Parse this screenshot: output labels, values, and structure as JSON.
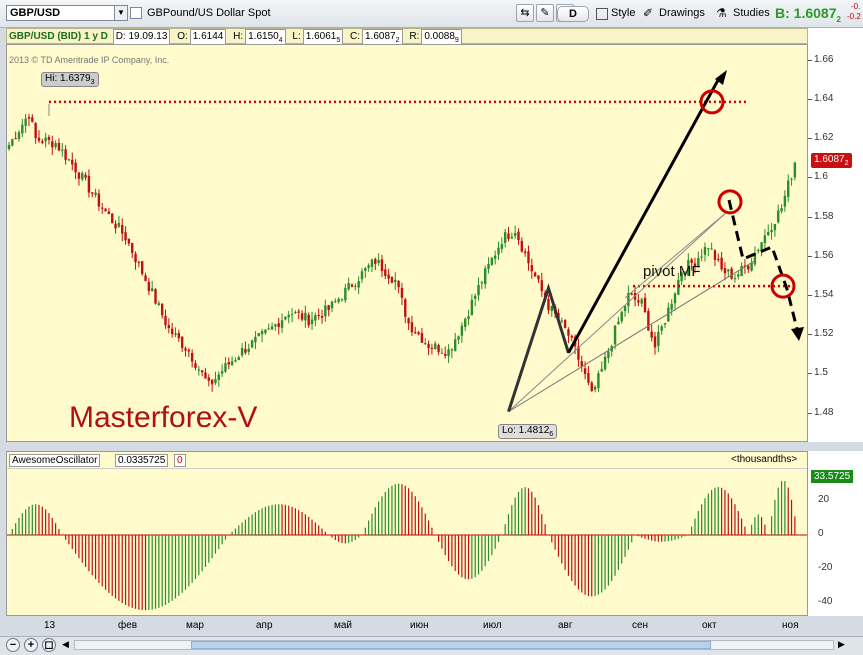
{
  "toolbar": {
    "symbol": "GBP/USD",
    "description": "GBPound/US Dollar Spot",
    "period_button": "D",
    "style_label": "Style",
    "drawings_label": "Drawings",
    "studies_label": "Studies",
    "bid_label": "B: 1.6087",
    "bid_sub": "2",
    "change_top": "-0.",
    "change_bottom": "-0.2"
  },
  "header": {
    "symbol": "GBP/USD (BID) 1 y D",
    "date": "D: 19.09.13",
    "open_label": "O:",
    "open": "1.6144",
    "high_label": "H:",
    "high": "1.6150",
    "high_sub": "4",
    "low_label": "L:",
    "low": "1.6061",
    "low_sub": "5",
    "close_label": "C:",
    "close": "1.6087",
    "close_sub": "2",
    "range_label": "R:",
    "range": "0.0088",
    "range_sub": "9"
  },
  "chart": {
    "copyright": "2013 © TD Ameritrade IP Company, Inc.",
    "hi_label": "Hi: 1.6379",
    "hi_sub": "3",
    "lo_label": "Lo: 1.4812",
    "lo_sub": "6",
    "watermark": "Masterforex-V",
    "pivot_label": "pivot MF",
    "current_price": "1.6087",
    "current_price_sub": "2",
    "colors": {
      "bg": "#fffbcc",
      "up": "#2a8c2a",
      "down": "#c01010",
      "level": "#cc0000"
    },
    "price_ticks": [
      "1.66",
      "1.64",
      "1.62",
      "1.6",
      "1.58",
      "1.56",
      "1.54",
      "1.52",
      "1.5",
      "1.48"
    ]
  },
  "oscillator": {
    "name": "AwesomeOscillator",
    "value": "0.0335725",
    "zero": "0",
    "units": "<thousandths>",
    "current": "33.5725",
    "ticks": [
      "20",
      "0",
      "-20",
      "-40"
    ]
  },
  "time_axis": {
    "labels": [
      "13",
      "фев",
      "мар",
      "апр",
      "май",
      "июн",
      "июл",
      "авг",
      "сен",
      "окт",
      "ноя"
    ]
  },
  "chart_data": {
    "type": "candlestick",
    "title": "GBP/USD (BID) 1 y D",
    "ylim": [
      1.465,
      1.668
    ],
    "month_labels": [
      "13",
      "фев",
      "мар",
      "апр",
      "май",
      "июн",
      "июл",
      "авг",
      "сен",
      "окт",
      "ноя"
    ],
    "anchors": [
      {
        "i": 0,
        "p": 1.617
      },
      {
        "i": 6,
        "p": 1.633
      },
      {
        "i": 8,
        "p": 1.62
      },
      {
        "i": 14,
        "p": 1.618
      },
      {
        "i": 20,
        "p": 1.605
      },
      {
        "i": 28,
        "p": 1.585
      },
      {
        "i": 35,
        "p": 1.57
      },
      {
        "i": 42,
        "p": 1.545
      },
      {
        "i": 48,
        "p": 1.523
      },
      {
        "i": 54,
        "p": 1.512
      },
      {
        "i": 60,
        "p": 1.494
      },
      {
        "i": 64,
        "p": 1.502
      },
      {
        "i": 70,
        "p": 1.512
      },
      {
        "i": 78,
        "p": 1.522
      },
      {
        "i": 84,
        "p": 1.532
      },
      {
        "i": 90,
        "p": 1.528
      },
      {
        "i": 96,
        "p": 1.533
      },
      {
        "i": 104,
        "p": 1.548
      },
      {
        "i": 110,
        "p": 1.558
      },
      {
        "i": 116,
        "p": 1.548
      },
      {
        "i": 120,
        "p": 1.526
      },
      {
        "i": 126,
        "p": 1.515
      },
      {
        "i": 132,
        "p": 1.512
      },
      {
        "i": 136,
        "p": 1.525
      },
      {
        "i": 142,
        "p": 1.548
      },
      {
        "i": 148,
        "p": 1.569
      },
      {
        "i": 152,
        "p": 1.574
      },
      {
        "i": 156,
        "p": 1.557
      },
      {
        "i": 162,
        "p": 1.535
      },
      {
        "i": 168,
        "p": 1.52
      },
      {
        "i": 172,
        "p": 1.504
      },
      {
        "i": 175,
        "p": 1.489
      },
      {
        "i": 178,
        "p": 1.502
      },
      {
        "i": 182,
        "p": 1.522
      },
      {
        "i": 186,
        "p": 1.54
      },
      {
        "i": 190,
        "p": 1.536
      },
      {
        "i": 194,
        "p": 1.514
      },
      {
        "i": 198,
        "p": 1.533
      },
      {
        "i": 202,
        "p": 1.553
      },
      {
        "i": 206,
        "p": 1.558
      },
      {
        "i": 210,
        "p": 1.566
      },
      {
        "i": 214,
        "p": 1.553
      },
      {
        "i": 218,
        "p": 1.55
      },
      {
        "i": 222,
        "p": 1.556
      },
      {
        "i": 226,
        "p": 1.568
      },
      {
        "i": 232,
        "p": 1.585
      },
      {
        "i": 236,
        "p": 1.608
      }
    ],
    "hi": 1.63793,
    "lo": 1.48126,
    "resistance_level": 1.639,
    "pivot_level": 1.545,
    "oscillator_waves": [
      {
        "s": 0,
        "e": 16,
        "a": 18
      },
      {
        "s": 16,
        "e": 66,
        "a": -44
      },
      {
        "s": 66,
        "e": 96,
        "a": 18
      },
      {
        "s": 96,
        "e": 106,
        "a": -5
      },
      {
        "s": 106,
        "e": 128,
        "a": 30
      },
      {
        "s": 128,
        "e": 148,
        "a": -26
      },
      {
        "s": 148,
        "e": 162,
        "a": 28
      },
      {
        "s": 162,
        "e": 188,
        "a": -36
      },
      {
        "s": 188,
        "e": 204,
        "a": -4
      },
      {
        "s": 204,
        "e": 222,
        "a": 28
      },
      {
        "s": 222,
        "e": 228,
        "a": 12
      },
      {
        "s": 228,
        "e": 237,
        "a": 32
      }
    ]
  }
}
